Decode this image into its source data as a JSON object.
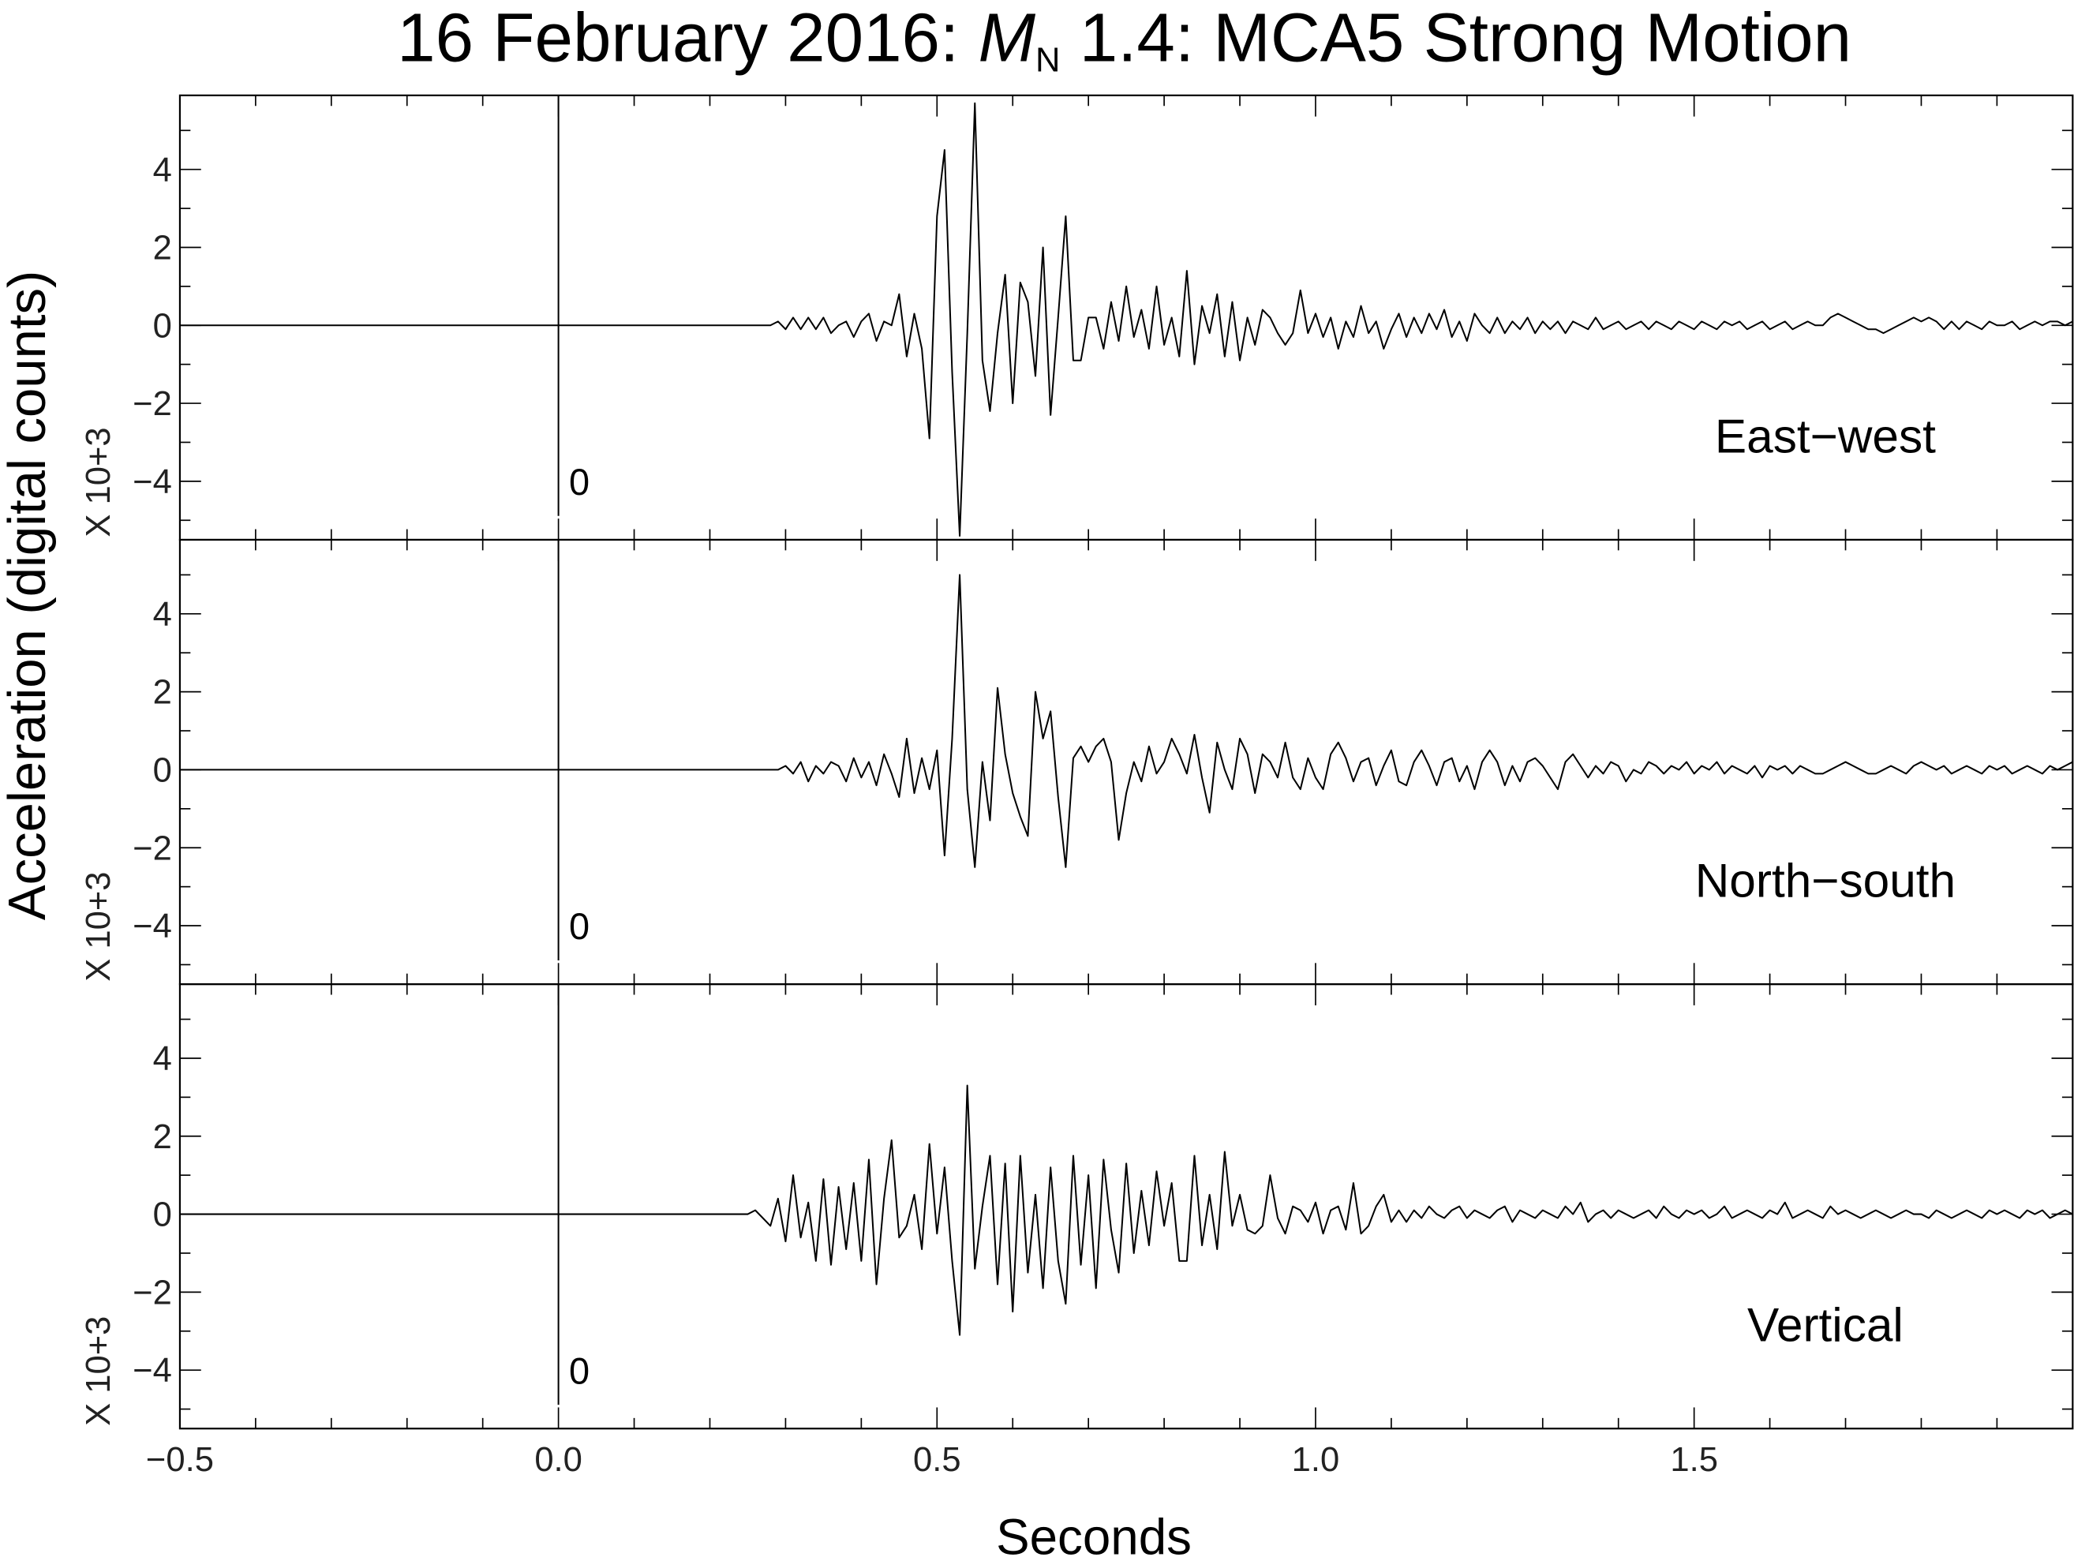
{
  "chart_data": {
    "type": "line",
    "title_parts": [
      "16 February 2016: ",
      "M",
      "N",
      " 1.4: MCA5 Strong Motion"
    ],
    "xlabel": "Seconds",
    "ylabel": "Acceleration (digital counts)",
    "xlim": [
      -0.5,
      2.0
    ],
    "xticks": [
      {
        "value": -0.5,
        "label": "−0.5"
      },
      {
        "value": 0,
        "label": "0.0"
      },
      0.5,
      {
        "value": 1,
        "label": "1.0"
      },
      1.5
    ],
    "xminorticks": [
      -0.4,
      -0.3,
      -0.2,
      -0.1,
      0.1,
      0.2,
      0.3,
      0.4,
      0.6,
      0.7,
      0.8,
      0.9,
      1.1,
      1.2,
      1.3,
      1.4,
      1.6,
      1.7,
      1.8,
      1.9
    ],
    "ylim": [
      -5.5,
      5.9
    ],
    "yticks": [
      {
        "value": -4,
        "label": "−4"
      },
      {
        "value": -2,
        "label": "−2"
      },
      0,
      2,
      4
    ],
    "yminorticks": [
      -5,
      -3,
      -1,
      1,
      3,
      5
    ],
    "x": [
      -0.5,
      0.25,
      0.26,
      0.27,
      0.28,
      0.29,
      0.3,
      0.31,
      0.32,
      0.33,
      0.34,
      0.35,
      0.36,
      0.37,
      0.38,
      0.39,
      0.4,
      0.41,
      0.42,
      0.43,
      0.44,
      0.45,
      0.46,
      0.47,
      0.48,
      0.49,
      0.5,
      0.51,
      0.52,
      0.53,
      0.54,
      0.55,
      0.56,
      0.57,
      0.58,
      0.59,
      0.6,
      0.61,
      0.62,
      0.63,
      0.64,
      0.65,
      0.66,
      0.67,
      0.68,
      0.69,
      0.7,
      0.71,
      0.72,
      0.73,
      0.74,
      0.75,
      0.76,
      0.77,
      0.78,
      0.79,
      0.8,
      0.81,
      0.82,
      0.83,
      0.84,
      0.85,
      0.86,
      0.87,
      0.88,
      0.89,
      0.9,
      0.91,
      0.92,
      0.93,
      0.94,
      0.95,
      0.96,
      0.97,
      0.98,
      0.99,
      1.0,
      1.01,
      1.02,
      1.03,
      1.04,
      1.05,
      1.06,
      1.07,
      1.08,
      1.09,
      1.1,
      1.11,
      1.12,
      1.13,
      1.14,
      1.15,
      1.16,
      1.17,
      1.18,
      1.19,
      1.2,
      1.21,
      1.22,
      1.23,
      1.24,
      1.25,
      1.26,
      1.27,
      1.28,
      1.29,
      1.3,
      1.31,
      1.32,
      1.33,
      1.34,
      1.35,
      1.36,
      1.37,
      1.38,
      1.39,
      1.4,
      1.41,
      1.42,
      1.43,
      1.44,
      1.45,
      1.46,
      1.47,
      1.48,
      1.49,
      1.5,
      1.51,
      1.52,
      1.53,
      1.54,
      1.55,
      1.56,
      1.57,
      1.58,
      1.59,
      1.6,
      1.61,
      1.62,
      1.63,
      1.64,
      1.65,
      1.66,
      1.67,
      1.68,
      1.69,
      1.7,
      1.71,
      1.72,
      1.73,
      1.74,
      1.75,
      1.76,
      1.77,
      1.78,
      1.79,
      1.8,
      1.81,
      1.82,
      1.83,
      1.84,
      1.85,
      1.86,
      1.87,
      1.88,
      1.89,
      1.9,
      1.91,
      1.92,
      1.93,
      1.94,
      1.95,
      1.96,
      1.97,
      1.98,
      1.99,
      2.0
    ],
    "panels": [
      {
        "name": "East−west",
        "color": "#000000",
        "scale_label": "X  10+3",
        "marker_x": 0,
        "marker_label": "0",
        "values": [
          0,
          0,
          0,
          0,
          0,
          0.1,
          -0.1,
          0.2,
          -0.1,
          0.2,
          -0.1,
          0.2,
          -0.2,
          0,
          0.1,
          -0.3,
          0.1,
          0.3,
          -0.4,
          0.1,
          0,
          0.8,
          -0.8,
          0.3,
          -0.6,
          -2.9,
          2.8,
          4.5,
          -1.2,
          -5.4,
          -0.2,
          5.7,
          -0.9,
          -2.2,
          -0.2,
          1.3,
          -2,
          1.1,
          0.6,
          -1.3,
          2,
          -2.3,
          0.2,
          2.8,
          -0.9,
          -0.9,
          0.2,
          0.2,
          -0.6,
          0.6,
          -0.4,
          1,
          -0.3,
          0.4,
          -0.6,
          1,
          -0.5,
          0.2,
          -0.8,
          1.4,
          -1,
          0.5,
          -0.2,
          0.8,
          -0.8,
          0.6,
          -0.9,
          0.2,
          -0.5,
          0.4,
          0.2,
          -0.2,
          -0.5,
          -0.2,
          0.9,
          -0.2,
          0.3,
          -0.3,
          0.2,
          -0.6,
          0.1,
          -0.3,
          0.5,
          -0.2,
          0.1,
          -0.6,
          -0.1,
          0.3,
          -0.3,
          0.2,
          -0.2,
          0.3,
          -0.1,
          0.4,
          -0.3,
          0.1,
          -0.4,
          0.3,
          0,
          -0.2,
          0.2,
          -0.2,
          0.1,
          -0.1,
          0.2,
          -0.2,
          0.1,
          -0.1,
          0.1,
          -0.2,
          0.1,
          0,
          -0.1,
          0.2,
          -0.1,
          0,
          0.1,
          -0.1,
          0,
          0.1,
          -0.1,
          0.1,
          0,
          -0.1,
          0.1,
          0,
          -0.1,
          0.1,
          0,
          -0.1,
          0.1,
          0,
          0.1,
          -0.1,
          0,
          0.1,
          -0.1,
          0,
          0.1,
          -0.1,
          0,
          0.1,
          0,
          0,
          0.2,
          0.3,
          0.2,
          0.1,
          0,
          -0.1,
          -0.1,
          -0.2,
          -0.1,
          0,
          0.1,
          0.2,
          0.1,
          0.2,
          0.1,
          -0.1,
          0.1,
          -0.1,
          0.1,
          0,
          -0.1,
          0.1,
          0,
          0,
          0.1,
          -0.1,
          0,
          0.1,
          0,
          0.1,
          0.1,
          0,
          0.1
        ]
      },
      {
        "name": "North−south",
        "color": "#000000",
        "scale_label": "X  10+3",
        "marker_x": 0,
        "marker_label": "0",
        "values": [
          0,
          0,
          0,
          0,
          0,
          0,
          0.1,
          -0.1,
          0.2,
          -0.3,
          0.1,
          -0.1,
          0.2,
          0.1,
          -0.3,
          0.3,
          -0.2,
          0.2,
          -0.4,
          0.4,
          -0.1,
          -0.7,
          0.8,
          -0.6,
          0.3,
          -0.5,
          0.5,
          -2.2,
          0.8,
          5.0,
          -0.5,
          -2.5,
          0.2,
          -1.3,
          2.1,
          0.4,
          -0.6,
          -1.2,
          -1.7,
          2.0,
          0.8,
          1.5,
          -0.7,
          -2.5,
          0.3,
          0.6,
          0.2,
          0.6,
          0.8,
          0.2,
          -1.8,
          -0.6,
          0.2,
          -0.3,
          0.6,
          -0.1,
          0.2,
          0.8,
          0.4,
          -0.1,
          0.9,
          -0.2,
          -1.1,
          0.7,
          0,
          -0.5,
          0.8,
          0.4,
          -0.6,
          0.4,
          0.2,
          -0.2,
          0.7,
          -0.2,
          -0.5,
          0.3,
          -0.2,
          -0.5,
          0.4,
          0.7,
          0.3,
          -0.3,
          0.2,
          0.3,
          -0.4,
          0.1,
          0.5,
          -0.3,
          -0.4,
          0.2,
          0.5,
          0.1,
          -0.4,
          0.2,
          0.3,
          -0.3,
          0.1,
          -0.5,
          0.2,
          0.5,
          0.2,
          -0.4,
          0.1,
          -0.3,
          0.2,
          0.3,
          0.1,
          -0.2,
          -0.5,
          0.2,
          0.4,
          0.1,
          -0.2,
          0.1,
          -0.1,
          0.2,
          0.1,
          -0.3,
          0,
          -0.1,
          0.2,
          0.1,
          -0.1,
          0.1,
          0,
          0.2,
          -0.1,
          0.1,
          0,
          0.2,
          -0.1,
          0.1,
          0,
          -0.1,
          0.1,
          -0.2,
          0.1,
          0,
          0.1,
          -0.1,
          0.1,
          0,
          -0.1,
          -0.1,
          0,
          0.1,
          0.2,
          0.1,
          0,
          -0.1,
          -0.1,
          0,
          0.1,
          0,
          -0.1,
          0.1,
          0.2,
          0.1,
          0,
          0.1,
          -0.1,
          0,
          0.1,
          0,
          -0.1,
          0.1,
          0,
          0.1,
          -0.1,
          0,
          0.1,
          0,
          -0.1,
          0.1,
          0,
          0.1,
          0.2
        ]
      },
      {
        "name": "Vertical",
        "color": "#000000",
        "scale_label": "X  10+3",
        "marker_x": 0,
        "marker_label": "0",
        "values": [
          0,
          0,
          0.1,
          -0.1,
          -0.3,
          0.4,
          -0.7,
          1.0,
          -0.6,
          0.3,
          -1.2,
          0.9,
          -1.3,
          0.7,
          -0.9,
          0.8,
          -1.2,
          1.4,
          -1.8,
          0.4,
          1.9,
          -0.6,
          -0.3,
          0.5,
          -0.9,
          1.8,
          -0.5,
          1.2,
          -1.2,
          -3.1,
          3.3,
          -1.4,
          0.2,
          1.5,
          -1.8,
          1.3,
          -2.5,
          1.5,
          -1.5,
          0.5,
          -1.9,
          1.2,
          -1.2,
          -2.3,
          1.5,
          -1.3,
          1.0,
          -1.9,
          1.4,
          -0.4,
          -1.5,
          1.3,
          -1.0,
          0.6,
          -0.8,
          1.1,
          -0.3,
          0.8,
          -1.2,
          -1.2,
          1.5,
          -0.8,
          0.5,
          -0.9,
          1.6,
          -0.3,
          0.5,
          -0.4,
          -0.5,
          -0.3,
          1.0,
          -0.1,
          -0.5,
          0.2,
          0.1,
          -0.2,
          0.3,
          -0.5,
          0.1,
          0.2,
          -0.4,
          0.8,
          -0.5,
          -0.3,
          0.2,
          0.5,
          -0.2,
          0.1,
          -0.2,
          0.1,
          -0.1,
          0.2,
          0,
          -0.1,
          0.1,
          0.2,
          -0.1,
          0.1,
          0,
          -0.1,
          0.1,
          0.2,
          -0.2,
          0.1,
          0,
          -0.1,
          0.1,
          0,
          -0.1,
          0.2,
          0,
          0.3,
          -0.2,
          0,
          0.1,
          -0.1,
          0.1,
          0,
          -0.1,
          0,
          0.1,
          -0.1,
          0.2,
          0,
          -0.1,
          0.1,
          0,
          0.1,
          -0.1,
          0,
          0.2,
          -0.1,
          0,
          0.1,
          0,
          -0.1,
          0.1,
          0,
          0.3,
          -0.1,
          0,
          0.1,
          0,
          -0.1,
          0.2,
          0,
          0.1,
          0,
          -0.1,
          0,
          0.1,
          0,
          -0.1,
          0,
          0.1,
          0,
          0,
          -0.1,
          0.1,
          0,
          -0.1,
          0,
          0.1,
          0,
          -0.1,
          0.1,
          0,
          0.1,
          0,
          -0.1,
          0.1,
          0,
          0.1,
          -0.1,
          0,
          0.1,
          0
        ]
      }
    ]
  }
}
